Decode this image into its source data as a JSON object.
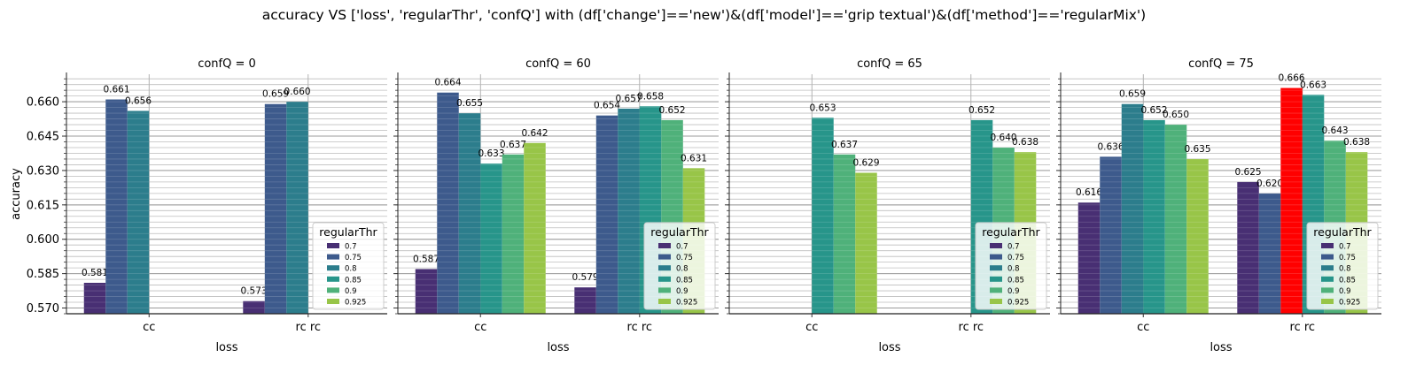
{
  "suptitle": "accuracy VS ['loss', 'regularThr', 'confQ'] with (df['change']=='new')&(df['model']=='grip textual')&(df['method']=='regularMix')",
  "chart_data": {
    "type": "bar",
    "ylabel": "accuracy",
    "xlabel": "loss",
    "ylim": [
      0.5675,
      0.672
    ],
    "yticks": [
      0.57,
      0.585,
      0.6,
      0.615,
      0.63,
      0.645,
      0.66
    ],
    "ytick_labels": [
      "0.570",
      "0.585",
      "0.600",
      "0.615",
      "0.630",
      "0.645",
      "0.660"
    ],
    "grid": true,
    "legend": {
      "title": "regularThr",
      "location": "lower right"
    },
    "hue_levels": [
      "0.7",
      "0.75",
      "0.8",
      "0.85",
      "0.9",
      "0.925"
    ],
    "colors": {
      "0.7": "#482f73",
      "0.75": "#3d5a8c",
      "0.8": "#2c7d8c",
      "0.85": "#27958a",
      "0.9": "#4fb17a",
      "0.925": "#98c548",
      "highlight": "#ff0000"
    },
    "panels": [
      {
        "title": "confQ = 0",
        "categories": [
          "cc",
          "rc rc"
        ],
        "series": [
          {
            "hue": "0.7",
            "values": [
              0.581,
              0.573
            ]
          },
          {
            "hue": "0.75",
            "values": [
              0.661,
              0.659
            ]
          },
          {
            "hue": "0.8",
            "values": [
              0.656,
              0.66
            ]
          },
          {
            "hue": "0.85",
            "values": [
              null,
              null
            ]
          },
          {
            "hue": "0.9",
            "values": [
              null,
              null
            ]
          },
          {
            "hue": "0.925",
            "values": [
              null,
              null
            ]
          }
        ]
      },
      {
        "title": "confQ = 60",
        "categories": [
          "cc",
          "rc rc"
        ],
        "series": [
          {
            "hue": "0.7",
            "values": [
              0.587,
              0.579
            ]
          },
          {
            "hue": "0.75",
            "values": [
              0.664,
              0.654
            ]
          },
          {
            "hue": "0.8",
            "values": [
              0.655,
              0.657
            ]
          },
          {
            "hue": "0.85",
            "values": [
              0.633,
              0.658
            ]
          },
          {
            "hue": "0.9",
            "values": [
              0.637,
              0.652
            ]
          },
          {
            "hue": "0.925",
            "values": [
              0.642,
              0.631
            ]
          }
        ]
      },
      {
        "title": "confQ = 65",
        "categories": [
          "cc",
          "rc rc"
        ],
        "series": [
          {
            "hue": "0.7",
            "values": [
              null,
              null
            ]
          },
          {
            "hue": "0.75",
            "values": [
              null,
              null
            ]
          },
          {
            "hue": "0.8",
            "values": [
              null,
              null
            ]
          },
          {
            "hue": "0.85",
            "values": [
              0.653,
              0.652
            ]
          },
          {
            "hue": "0.9",
            "values": [
              0.637,
              0.64
            ]
          },
          {
            "hue": "0.925",
            "values": [
              0.629,
              0.638
            ]
          }
        ]
      },
      {
        "title": "confQ = 75",
        "categories": [
          "cc",
          "rc rc"
        ],
        "highlight": {
          "hue": "0.8",
          "category": "rc rc"
        },
        "series": [
          {
            "hue": "0.7",
            "values": [
              0.616,
              0.625
            ]
          },
          {
            "hue": "0.75",
            "values": [
              0.636,
              0.62
            ]
          },
          {
            "hue": "0.8",
            "values": [
              0.659,
              0.666
            ]
          },
          {
            "hue": "0.85",
            "values": [
              0.652,
              0.663
            ]
          },
          {
            "hue": "0.9",
            "values": [
              0.65,
              0.643
            ]
          },
          {
            "hue": "0.925",
            "values": [
              0.635,
              0.638
            ]
          }
        ]
      }
    ]
  }
}
